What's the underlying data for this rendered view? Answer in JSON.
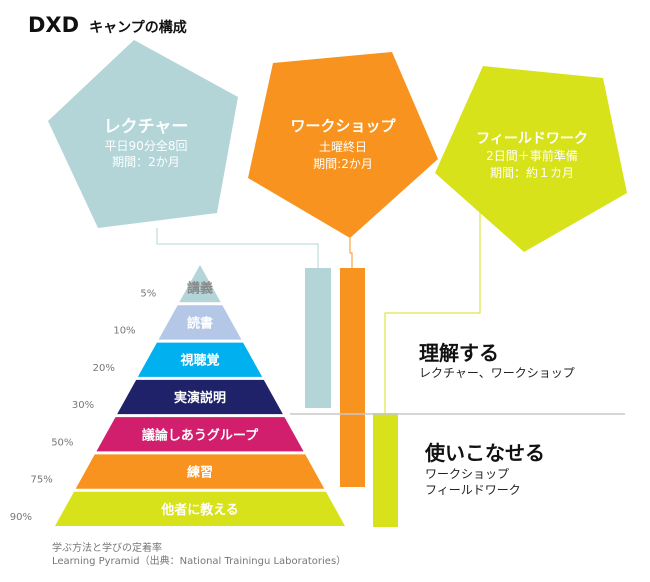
{
  "title": {
    "brand": "DXD",
    "rest": "キャンプの構成"
  },
  "colors": {
    "lecture": "#b3d5d8",
    "workshop": "#f7931e",
    "fieldwork": "#d7e21a",
    "divider": "#c8c8c8",
    "percent": "#777777"
  },
  "programs": [
    {
      "name": "レクチャー",
      "line1": "平日90分全8回",
      "line2": "期間：2か月"
    },
    {
      "name": "ワークショップ",
      "line1": "土曜終日",
      "line2": "期間:2か月"
    },
    {
      "name": "フィールドワーク",
      "line1": "2日間＋事前準備",
      "line2": "期間：約１カ月"
    }
  ],
  "outcomes": [
    {
      "heading": "理解する",
      "sub": [
        "レクチャー、ワークショップ"
      ]
    },
    {
      "heading": "使いこなせる",
      "sub": [
        "ワークショップ",
        "フィールドワーク"
      ]
    }
  ],
  "pyramid": [
    {
      "label": "講義",
      "percent": "5%",
      "fill": "#b3d5d8",
      "text": "#8a8a8a"
    },
    {
      "label": "読書",
      "percent": "10%",
      "fill": "#b4c7e7",
      "text": "#ffffff"
    },
    {
      "label": "視聴覚",
      "percent": "20%",
      "fill": "#00b0ef",
      "text": "#ffffff"
    },
    {
      "label": "実演説明",
      "percent": "30%",
      "fill": "#1f2169",
      "text": "#ffffff"
    },
    {
      "label": "議論しあうグループ",
      "percent": "50%",
      "fill": "#d11f6e",
      "text": "#ffffff"
    },
    {
      "label": "練習",
      "percent": "75%",
      "fill": "#f7931e",
      "text": "#ffffff"
    },
    {
      "label": "他者に教える",
      "percent": "90%",
      "fill": "#d7e21a",
      "text": "#ffffff"
    }
  ],
  "caption": {
    "line1": "学ぶ方法と学びの定着率",
    "line2": "Learning Pyramid（出典：National Trainingu Laboratories）"
  }
}
